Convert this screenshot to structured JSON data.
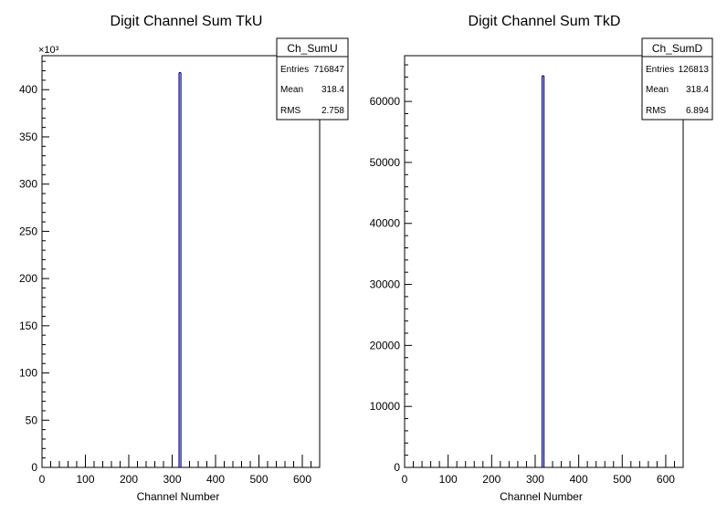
{
  "chart_data": [
    {
      "type": "bar",
      "title": "Digit Channel Sum TkU",
      "xlabel": "Channel Number",
      "ylabel": "",
      "y_exponent_label": "×10³",
      "xlim": [
        0,
        640
      ],
      "ylim": [
        0,
        436
      ],
      "x_ticks": [
        0,
        100,
        200,
        300,
        400,
        500,
        600
      ],
      "y_ticks": [
        0,
        50,
        100,
        150,
        200,
        250,
        300,
        350,
        400
      ],
      "bars": [
        {
          "x": 318,
          "value": 418
        }
      ],
      "stats": {
        "name": "Ch_SumU",
        "entries_label": "Entries",
        "entries": "716847",
        "mean_label": "Mean",
        "mean": "318.4",
        "rms_label": "RMS",
        "rms": "2.758"
      },
      "line_color": "#000080"
    },
    {
      "type": "bar",
      "title": "Digit Channel Sum TkD",
      "xlabel": "Channel Number",
      "ylabel": "",
      "xlim": [
        0,
        640
      ],
      "ylim": [
        0,
        67500
      ],
      "x_ticks": [
        0,
        100,
        200,
        300,
        400,
        500,
        600
      ],
      "y_ticks": [
        0,
        10000,
        20000,
        30000,
        40000,
        50000,
        60000
      ],
      "bars": [
        {
          "x": 318,
          "value": 64200
        }
      ],
      "stats": {
        "name": "Ch_SumD",
        "entries_label": "Entries",
        "entries": "126813",
        "mean_label": "Mean",
        "mean": "318.4",
        "rms_label": "RMS",
        "rms": "6.894"
      },
      "line_color": "#000080"
    }
  ]
}
